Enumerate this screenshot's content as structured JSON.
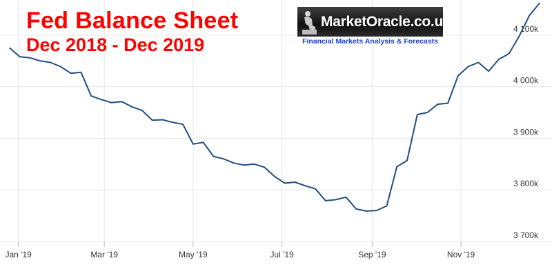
{
  "header": {
    "title": "Fed Balance Sheet",
    "subtitle": "Dec 2018 - Dec 2019"
  },
  "logo": {
    "name": "MarketOracle.co.uk",
    "tagline": "Financial Markets Analysis & Forecasts"
  },
  "colors": {
    "title": "#ff0000",
    "line": "#1f4e80",
    "grid": "#e6e6e6",
    "tagline": "#1a3fd6"
  },
  "chart_data": {
    "type": "line",
    "title": "Fed Balance Sheet",
    "subtitle": "Dec 2018 - Dec 2019",
    "xlabel": "",
    "ylabel": "",
    "x_range": [
      "2018-12-26",
      "2019-12-25"
    ],
    "ylim": [
      3700,
      4160
    ],
    "y_ticks": [
      3700,
      3800,
      3900,
      4000,
      4100
    ],
    "y_tick_labels": [
      "3 700k",
      "3 800k",
      "3 900k",
      "4 000k",
      "4 100k"
    ],
    "y_axis_position": "right",
    "x_ticks": [
      {
        "date": "2019-01-01",
        "label": "Jan '19"
      },
      {
        "date": "2019-03-01",
        "label": "Mar '19"
      },
      {
        "date": "2019-05-01",
        "label": "May '19"
      },
      {
        "date": "2019-07-01",
        "label": "Jul '19"
      },
      {
        "date": "2019-09-01",
        "label": "Sep '19"
      },
      {
        "date": "2019-11-01",
        "label": "Nov '19"
      }
    ],
    "grid": true,
    "series": [
      {
        "x": [
          "2018-12-26",
          "2019-01-02",
          "2019-01-09",
          "2019-01-16",
          "2019-01-23",
          "2019-01-30",
          "2019-02-06",
          "2019-02-13",
          "2019-02-20",
          "2019-02-27",
          "2019-03-06",
          "2019-03-13",
          "2019-03-20",
          "2019-03-27",
          "2019-04-03",
          "2019-04-10",
          "2019-04-17",
          "2019-04-24",
          "2019-05-01",
          "2019-05-08",
          "2019-05-15",
          "2019-05-22",
          "2019-05-29",
          "2019-06-05",
          "2019-06-12",
          "2019-06-19",
          "2019-06-26",
          "2019-07-03",
          "2019-07-10",
          "2019-07-17",
          "2019-07-24",
          "2019-07-31",
          "2019-08-07",
          "2019-08-14",
          "2019-08-21",
          "2019-08-28",
          "2019-09-04",
          "2019-09-11",
          "2019-09-18",
          "2019-09-25",
          "2019-10-02",
          "2019-10-09",
          "2019-10-16",
          "2019-10-23",
          "2019-10-30",
          "2019-11-06",
          "2019-11-13",
          "2019-11-20",
          "2019-11-27",
          "2019-12-04",
          "2019-12-11",
          "2019-12-18",
          "2019-12-25"
        ],
        "values": [
          4075,
          4058,
          4056,
          4050,
          4047,
          4039,
          4026,
          4028,
          3982,
          3975,
          3969,
          3971,
          3961,
          3954,
          3935,
          3936,
          3931,
          3927,
          3889,
          3892,
          3865,
          3860,
          3852,
          3848,
          3850,
          3844,
          3826,
          3813,
          3815,
          3808,
          3802,
          3779,
          3781,
          3786,
          3763,
          3759,
          3760,
          3769,
          3845,
          3857,
          3946,
          3950,
          3966,
          3968,
          4021,
          4039,
          4047,
          4030,
          4053,
          4064,
          4098,
          4138,
          4162
        ]
      }
    ]
  }
}
